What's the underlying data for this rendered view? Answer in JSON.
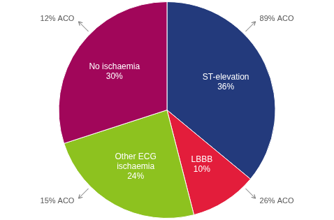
{
  "chart_data": {
    "type": "pie",
    "categories": [
      "ST-elevation",
      "LBBB",
      "Other ECG ischaemia",
      "No ischaemia"
    ],
    "values": [
      36,
      10,
      24,
      30
    ],
    "value_labels": [
      "36%",
      "10%",
      "24%",
      "30%"
    ],
    "colors": [
      "#233a7c",
      "#e31d3b",
      "#8dc21f",
      "#a1065a"
    ],
    "data_labels": true,
    "annotations": [
      "89% ACO",
      "26% ACO",
      "15% ACO",
      "12% ACO"
    ]
  }
}
